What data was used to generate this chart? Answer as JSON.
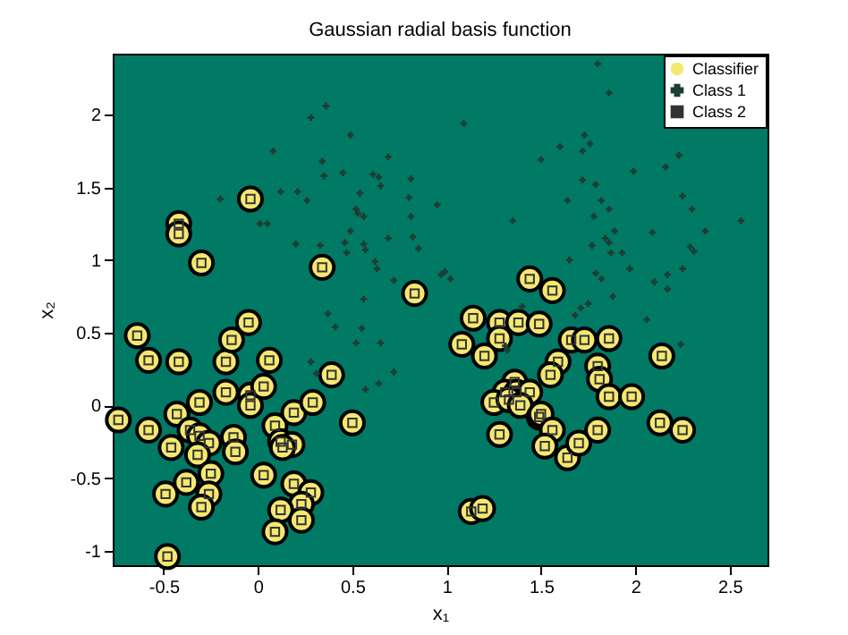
{
  "chart_data": {
    "type": "scatter",
    "title": "Gaussian radial basis function",
    "xlabel": "x₁",
    "ylabel": "x₂",
    "xlim": [
      -0.77,
      2.7
    ],
    "ylim": [
      -1.1,
      2.42
    ],
    "xticks": [
      -0.5,
      0,
      0.5,
      1,
      1.5,
      2,
      2.5
    ],
    "yticks": [
      -1,
      -0.5,
      0,
      0.5,
      1,
      1.5,
      2
    ],
    "grid": false,
    "legend": "top right",
    "series": [
      {
        "name": "Classifier",
        "color": "#f5e870",
        "marker": "circle",
        "x": [
          -0.64,
          -0.58,
          -0.42,
          -0.17,
          -0.14,
          -0.05,
          0.06,
          0.39,
          0.83,
          -0.31,
          -0.17,
          -0.04,
          -0.04,
          0.03,
          -0.74,
          -0.58,
          -0.43,
          -0.36,
          -0.31,
          -0.26,
          -0.46,
          -0.32,
          -0.38,
          -0.25,
          -0.13,
          -0.12,
          0.09,
          0.12,
          0.18,
          0.13,
          0.19,
          0.29,
          0.5,
          0.03,
          -0.49,
          -0.26,
          -0.3,
          0.19,
          0.28,
          0.23,
          0.12,
          0.23,
          0.09,
          -0.48,
          -0.04,
          -0.42,
          -0.42,
          -0.3,
          0.34,
          1.44,
          1.56,
          1.14,
          1.28,
          1.38,
          1.49,
          1.28,
          1.08,
          1.2,
          1.66,
          1.73,
          1.86,
          2.14,
          1.59,
          1.55,
          1.8,
          1.81,
          1.86,
          1.98,
          1.36,
          1.31,
          1.37,
          1.44,
          1.25,
          1.33,
          1.39,
          1.49,
          1.5,
          1.56,
          1.52,
          1.28,
          1.64,
          1.7,
          1.8,
          2.13,
          2.25,
          1.13,
          1.19
        ],
        "values": [
          0.48,
          0.31,
          0.3,
          0.3,
          0.45,
          0.57,
          0.31,
          0.21,
          0.77,
          0.02,
          0.09,
          0.07,
          0,
          0.13,
          -0.1,
          -0.17,
          -0.06,
          -0.17,
          -0.21,
          -0.26,
          -0.29,
          -0.34,
          -0.53,
          -0.47,
          -0.22,
          -0.32,
          -0.14,
          -0.25,
          -0.27,
          -0.29,
          -0.05,
          0.02,
          -0.12,
          -0.48,
          -0.61,
          -0.61,
          -0.7,
          -0.54,
          -0.6,
          -0.68,
          -0.72,
          -0.79,
          -0.87,
          -1.04,
          1.42,
          1.25,
          1.18,
          0.98,
          0.95,
          0.87,
          0.79,
          0.6,
          0.57,
          0.57,
          0.56,
          0.46,
          0.42,
          0.34,
          0.45,
          0.45,
          0.46,
          0.34,
          0.3,
          0.21,
          0.27,
          0.18,
          0.06,
          0.06,
          0.16,
          0.09,
          0.09,
          0.09,
          0.02,
          0.04,
          0,
          -0.08,
          -0.06,
          -0.17,
          -0.28,
          -0.2,
          -0.36,
          -0.26,
          -0.17,
          -0.12,
          -0.17,
          -0.73,
          -0.71
        ]
      },
      {
        "name": "Class 1",
        "color": "#1e3d34",
        "marker": "cross",
        "x": [
          0.36,
          0.28,
          0.49,
          0.08,
          0.69,
          0.34,
          0.35,
          0.45,
          0.61,
          0.64,
          0.65,
          0.81,
          -0.2,
          0.12,
          0.21,
          0.26,
          0.54,
          0.52,
          0.53,
          0.56,
          0.8,
          0.95,
          0.81,
          0.01,
          0.05,
          0.49,
          0.2,
          0.46,
          0.56,
          0.33,
          0.69,
          0.82,
          0.85,
          0.57,
          0.47,
          0.62,
          0.63,
          0.72,
          0.97,
          0.99,
          0.56,
          0.37,
          0.41,
          0.55,
          0.65,
          0.52,
          0.28,
          0.31,
          0.72,
          0.64,
          0.57,
          1.8,
          1.86,
          1.09,
          1.73,
          1.76,
          1.72,
          1.6,
          1.5,
          2.23,
          2.16,
          1.99,
          1.72,
          1.79,
          1.64,
          1.82,
          1.86,
          2.25,
          2.3,
          1.78,
          1.35,
          2.56,
          1.89,
          1.84,
          2.37,
          2.09,
          1.86,
          1.77,
          1.93,
          1.87,
          2.29,
          2.31,
          1.65,
          1.97,
          1.79,
          1.82,
          2.25,
          2.17,
          2.1,
          2.17,
          1.02,
          1.88,
          1.75,
          1.71,
          1.68,
          1.4,
          2.06,
          2.24,
          1.31,
          1.32
        ],
        "values": [
          2.06,
          1.98,
          1.86,
          1.75,
          1.71,
          1.68,
          1.58,
          1.6,
          1.59,
          1.57,
          1.51,
          1.56,
          1.42,
          1.47,
          1.47,
          1.41,
          1.46,
          1.35,
          1.32,
          1.3,
          1.43,
          1.38,
          1.3,
          1.25,
          1.25,
          1.2,
          1.11,
          1.12,
          1.11,
          1.1,
          1.15,
          1.16,
          1.08,
          1.07,
          1.05,
          0.99,
          0.94,
          0.86,
          0.9,
          0.92,
          0.73,
          0.63,
          0.54,
          0.53,
          0.43,
          0.43,
          0.3,
          0.22,
          0.23,
          0.15,
          0.11,
          2.35,
          2.15,
          1.94,
          1.86,
          1.8,
          1.75,
          1.78,
          1.69,
          1.72,
          1.64,
          1.61,
          1.55,
          1.52,
          1.41,
          1.41,
          1.35,
          1.44,
          1.35,
          1.3,
          1.27,
          1.27,
          1.2,
          1.15,
          1.2,
          1.19,
          1.12,
          1.1,
          1.05,
          1.05,
          1.09,
          1.06,
          1,
          0.94,
          0.91,
          0.87,
          0.94,
          0.9,
          0.85,
          0.8,
          0.87,
          0.75,
          0.7,
          0.67,
          0.62,
          0.68,
          0.59,
          0.42,
          0.41,
          0.38
        ]
      },
      {
        "name": "Class 2",
        "color": "#333333",
        "marker": "square",
        "x": [
          -0.64,
          -0.58,
          -0.42,
          -0.17,
          -0.14,
          -0.05,
          0.06,
          0.39,
          0.83,
          -0.31,
          -0.17,
          -0.04,
          -0.04,
          0.03,
          -0.74,
          -0.58,
          -0.43,
          -0.36,
          -0.31,
          -0.26,
          -0.46,
          -0.32,
          -0.38,
          -0.25,
          -0.13,
          -0.12,
          0.09,
          0.12,
          0.18,
          0.13,
          0.19,
          0.29,
          0.5,
          0.03,
          -0.49,
          -0.26,
          -0.3,
          0.19,
          0.28,
          0.23,
          0.12,
          0.23,
          0.09,
          -0.48,
          -0.04,
          -0.42,
          -0.42,
          -0.3,
          0.34,
          1.44,
          1.56,
          1.14,
          1.28,
          1.38,
          1.49,
          1.28,
          1.08,
          1.2,
          1.66,
          1.73,
          1.86,
          2.14,
          1.59,
          1.55,
          1.8,
          1.81,
          1.86,
          1.98,
          1.36,
          1.31,
          1.37,
          1.44,
          1.25,
          1.33,
          1.39,
          1.49,
          1.5,
          1.56,
          1.52,
          1.28,
          1.64,
          1.7,
          1.8,
          2.13,
          2.25,
          1.13,
          1.19
        ],
        "values": [
          0.48,
          0.31,
          0.3,
          0.3,
          0.45,
          0.57,
          0.31,
          0.21,
          0.77,
          0.02,
          0.09,
          0.07,
          0,
          0.13,
          -0.1,
          -0.17,
          -0.06,
          -0.17,
          -0.21,
          -0.26,
          -0.29,
          -0.34,
          -0.53,
          -0.47,
          -0.22,
          -0.32,
          -0.14,
          -0.25,
          -0.27,
          -0.29,
          -0.05,
          0.02,
          -0.12,
          -0.48,
          -0.61,
          -0.61,
          -0.7,
          -0.54,
          -0.6,
          -0.68,
          -0.72,
          -0.79,
          -0.87,
          -1.04,
          1.42,
          1.25,
          1.18,
          0.98,
          0.95,
          0.87,
          0.79,
          0.6,
          0.57,
          0.57,
          0.56,
          0.46,
          0.42,
          0.34,
          0.45,
          0.45,
          0.46,
          0.34,
          0.3,
          0.21,
          0.27,
          0.18,
          0.06,
          0.06,
          0.16,
          0.09,
          0.09,
          0.09,
          0.02,
          0.04,
          0,
          -0.08,
          -0.06,
          -0.17,
          -0.28,
          -0.2,
          -0.36,
          -0.26,
          -0.17,
          -0.12,
          -0.17,
          -0.73,
          -0.71
        ]
      }
    ]
  }
}
